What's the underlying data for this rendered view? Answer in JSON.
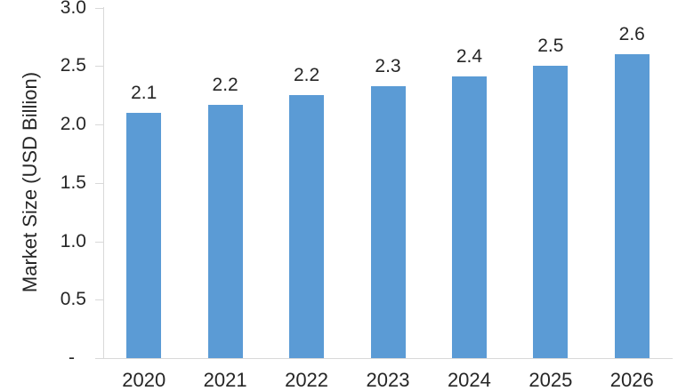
{
  "chart_data": {
    "type": "bar",
    "title": "",
    "xlabel": "",
    "ylabel": "Market Size (USD Billion)",
    "categories": [
      "2020",
      "2021",
      "2022",
      "2023",
      "2024",
      "2025",
      "2026"
    ],
    "values": [
      2.1,
      2.17,
      2.25,
      2.33,
      2.41,
      2.5,
      2.6
    ],
    "data_labels": [
      "2.1",
      "2.2",
      "2.2",
      "2.3",
      "2.4",
      "2.5",
      "2.6"
    ],
    "y_tick_labels": [
      "3.0",
      "2.5",
      "2.0",
      "1.5",
      "1.0",
      "0.5",
      "-"
    ],
    "y_tick_values": [
      3.0,
      2.5,
      2.0,
      1.5,
      1.0,
      0.5,
      0
    ],
    "ylim": [
      0,
      3.0
    ],
    "grid": false,
    "legend": false,
    "colors": {
      "bar": "#5B9BD5",
      "axis": "#D9D9D9",
      "text": "#262626"
    }
  }
}
